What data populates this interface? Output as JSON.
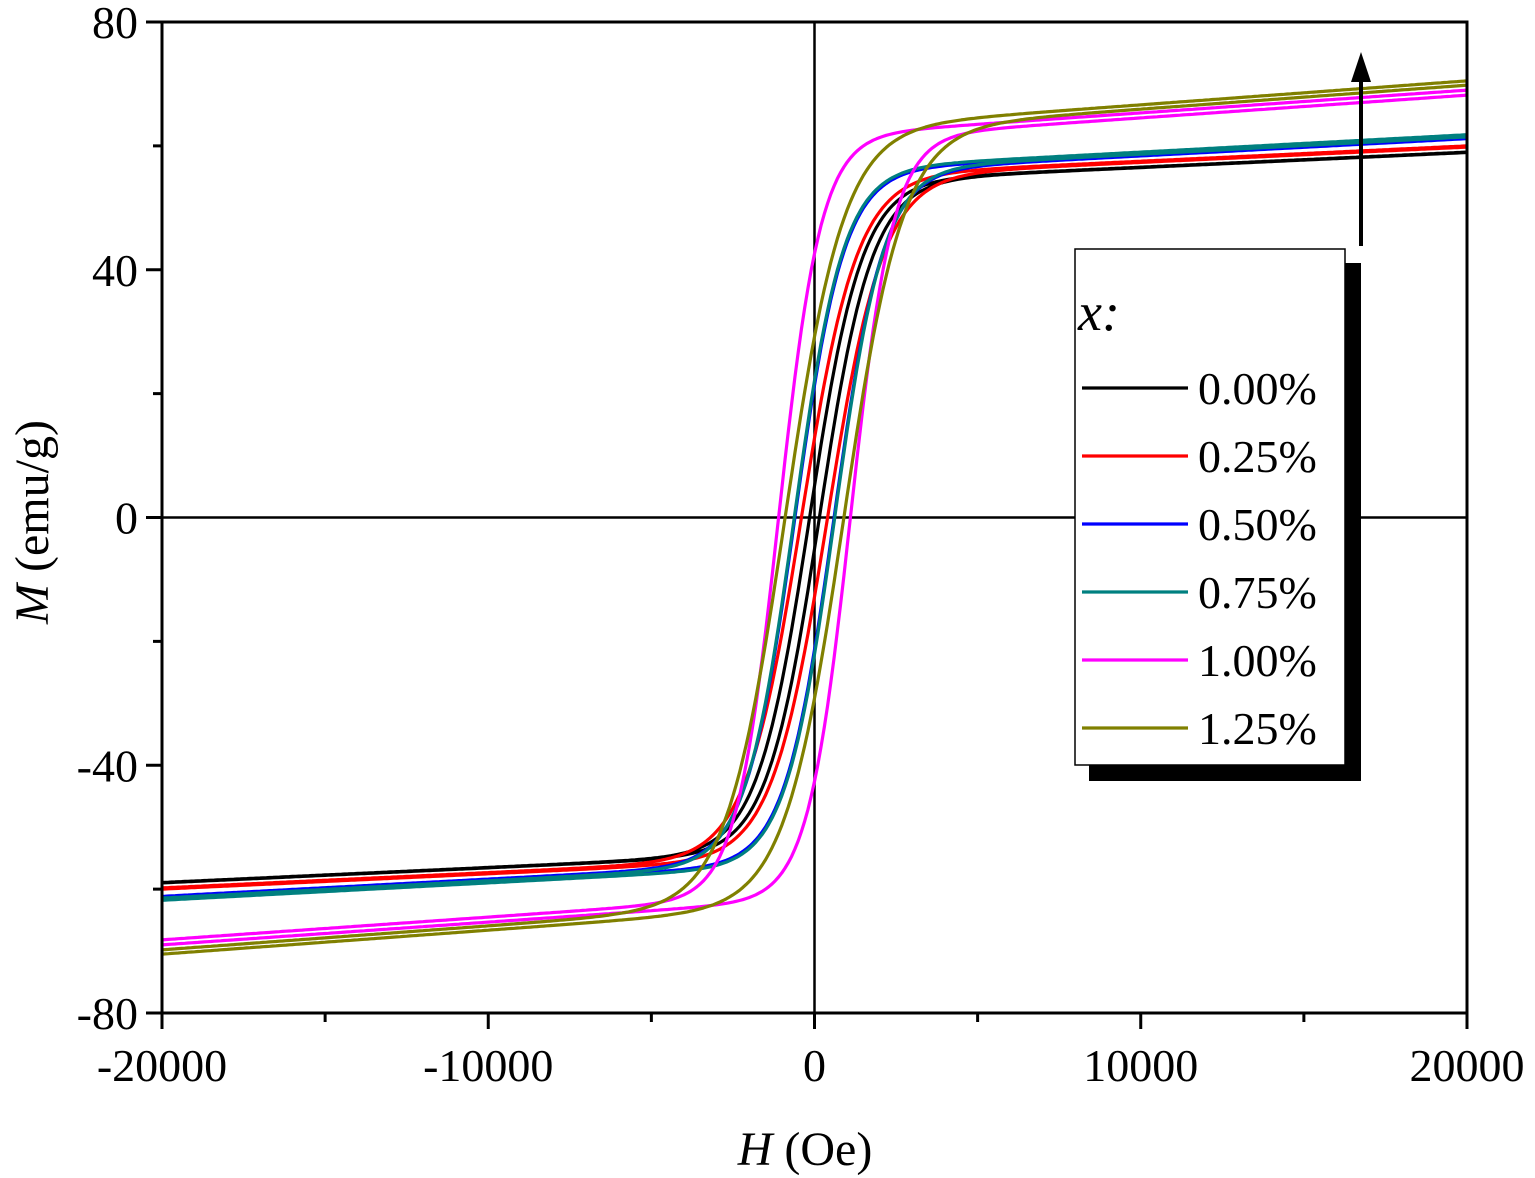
{
  "chart_data": {
    "type": "line",
    "xlabel_var": "H",
    "xlabel_unit": " (Oe)",
    "ylabel_var": "M",
    "ylabel_unit": " (emu/g)",
    "xlim": [
      -20000,
      20000
    ],
    "ylim": [
      -80,
      80
    ],
    "x_ticks": [
      -20000,
      -10000,
      0,
      10000,
      20000
    ],
    "y_ticks": [
      -80,
      -40,
      0,
      40,
      80
    ],
    "x_tick_labels": [
      "-20000",
      "-10000",
      "0",
      "10000",
      "20000"
    ],
    "y_tick_labels": [
      "-80",
      "-40",
      "0",
      "40",
      "80"
    ],
    "grid": false,
    "zero_lines": true,
    "legend": {
      "title": "x:",
      "placement": "right",
      "entries": [
        "0.00%",
        "0.25%",
        "0.50%",
        "0.75%",
        "1.00%",
        "1.25%"
      ]
    },
    "annotation": "upward arrow indicating increase with x",
    "series": [
      {
        "name": "0.00%",
        "color": "#000000",
        "Ms": 59,
        "Hc": 150,
        "Mr": 18,
        "shape": 1600,
        "slope": 0.00045
      },
      {
        "name": "0.25%",
        "color": "#ff0000",
        "Ms": 60,
        "Hc": 400,
        "Mr": 22,
        "shape": 1700,
        "slope": 0.00045
      },
      {
        "name": "0.50%",
        "color": "#0000ff",
        "Ms": 61.5,
        "Hc": 600,
        "Mr": 24,
        "shape": 1500,
        "slope": 0.0005
      },
      {
        "name": "0.75%",
        "color": "#008080",
        "Ms": 61.8,
        "Hc": 620,
        "Mr": 25,
        "shape": 1500,
        "slope": 0.0005
      },
      {
        "name": "1.00%",
        "color": "#ff00ff",
        "Ms": 69,
        "Hc": 1100,
        "Mr": 33,
        "shape": 1300,
        "slope": 0.0006
      },
      {
        "name": "1.25%",
        "color": "#808000",
        "Ms": 70.5,
        "Hc": 900,
        "Mr": 27,
        "shape": 1800,
        "slope": 0.00062
      }
    ]
  }
}
